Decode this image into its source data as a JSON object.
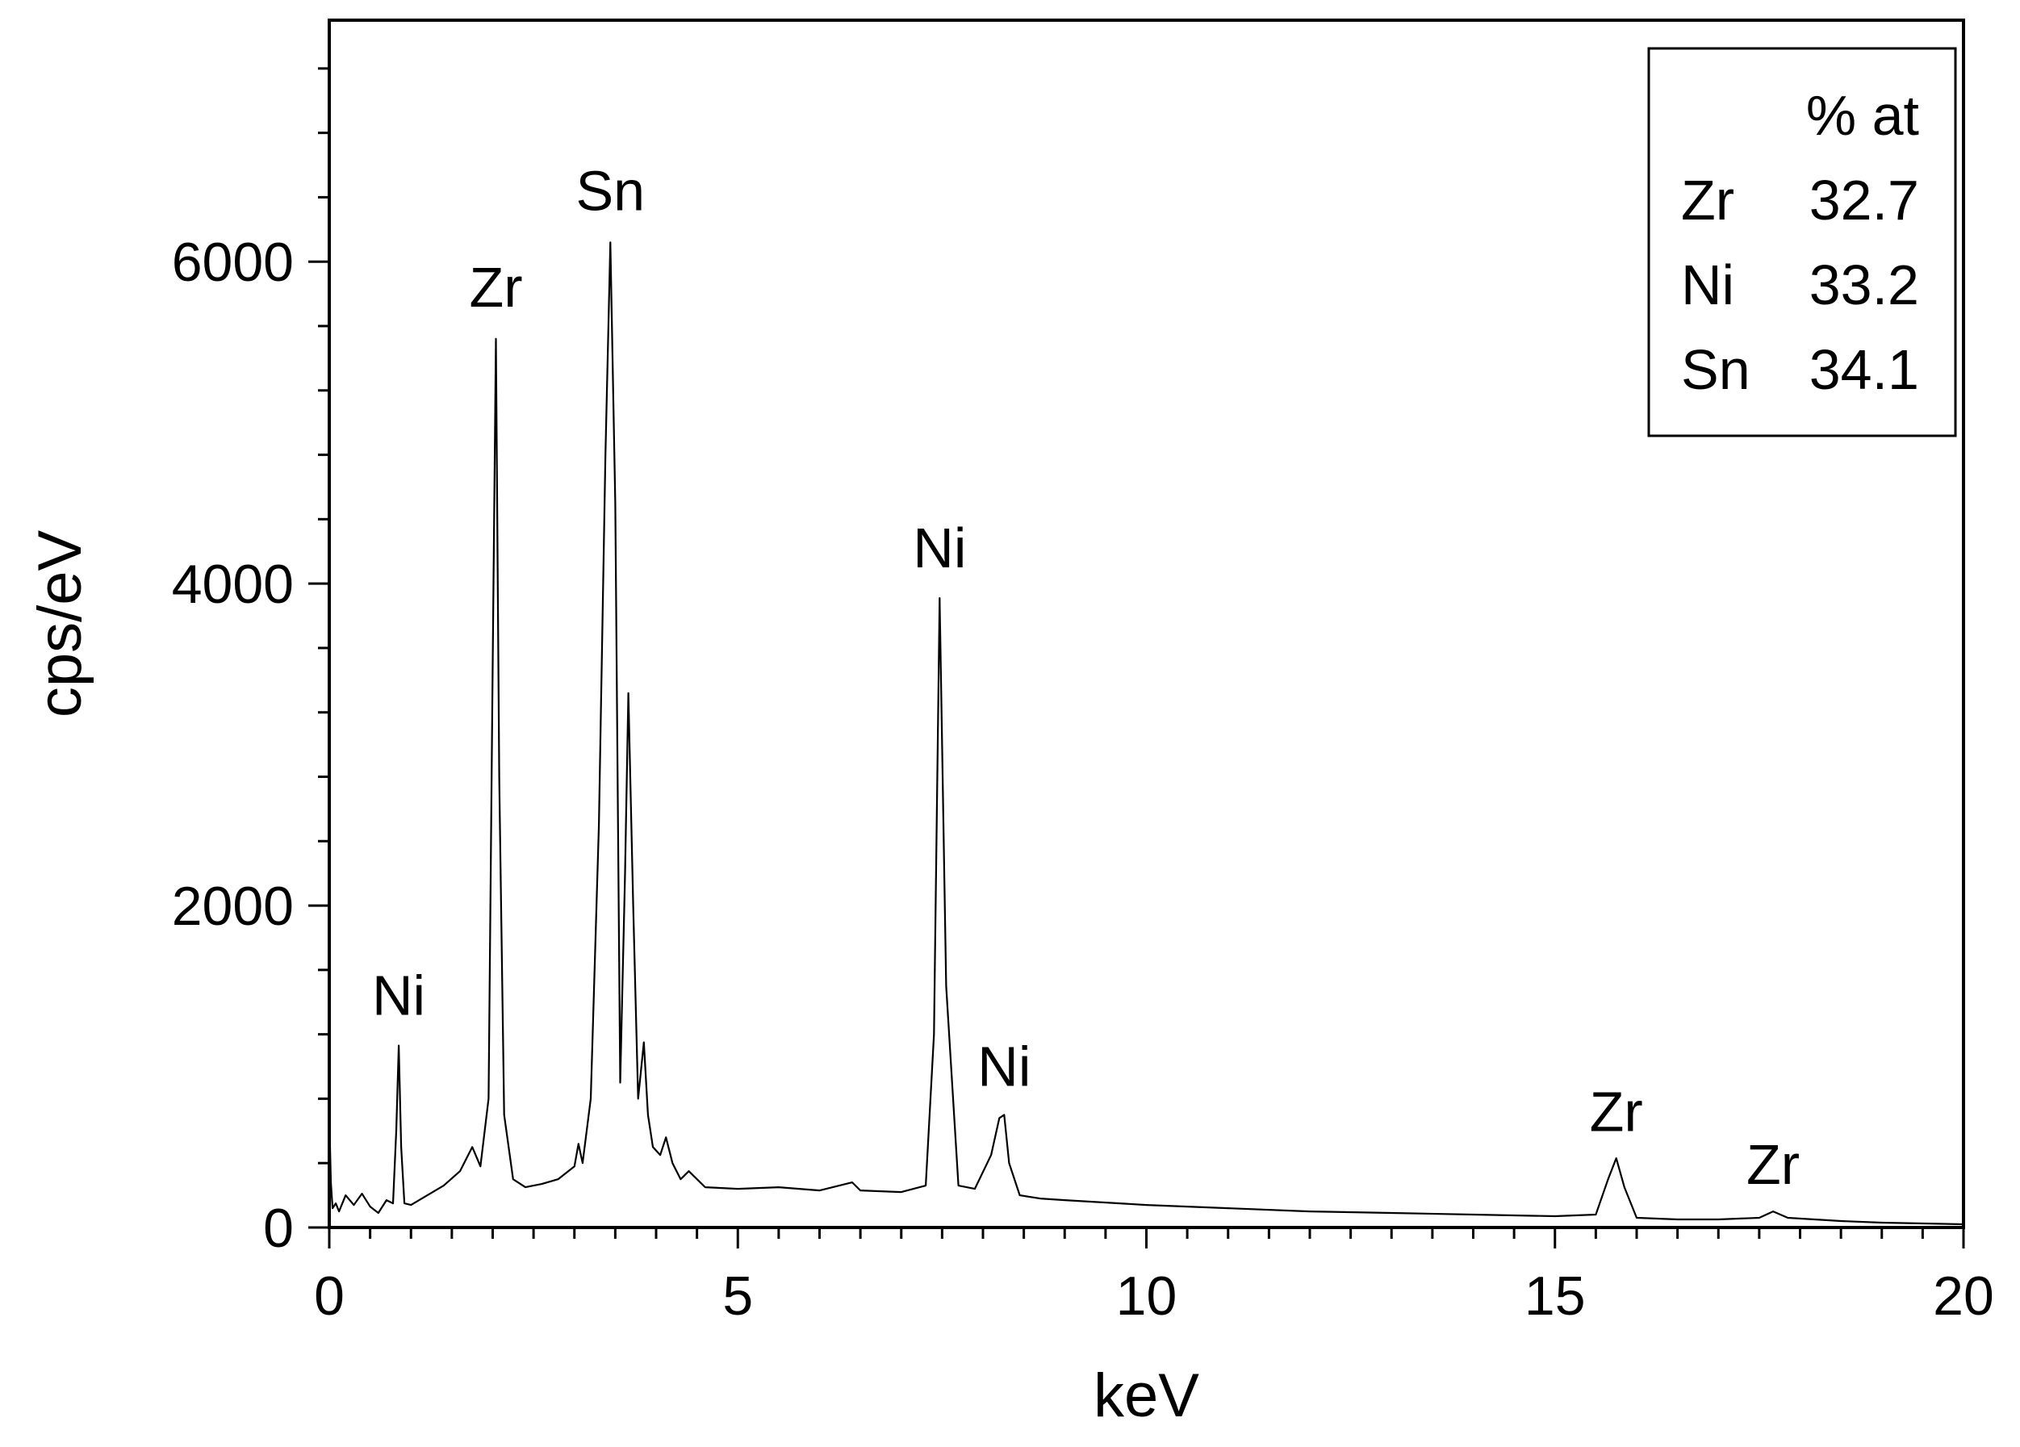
{
  "chart_data": {
    "type": "line",
    "title": "",
    "xlabel": "keV",
    "ylabel": "cps/eV",
    "xlim": [
      0,
      20
    ],
    "ylim": [
      0,
      7500
    ],
    "x_ticks": [
      0,
      5,
      10,
      15,
      20
    ],
    "x_tick_labels": [
      "0",
      "5",
      "10",
      "15",
      "20"
    ],
    "y_ticks": [
      0,
      2000,
      4000,
      6000
    ],
    "y_tick_labels": [
      "0",
      "2000",
      "4000",
      "6000"
    ],
    "grid": false,
    "line_color": "#000000",
    "peaks": [
      {
        "label": "Ni",
        "x": 0.85,
        "y": 1130,
        "label_y": 1320
      },
      {
        "label": "Zr",
        "x": 2.04,
        "y": 5520,
        "label_y": 5720
      },
      {
        "label": "Sn",
        "x": 3.44,
        "y": 6120,
        "label_y": 6320
      },
      {
        "label": "Ni",
        "x": 7.47,
        "y": 3910,
        "label_y": 4100
      },
      {
        "label": "Ni",
        "x": 8.26,
        "y": 700,
        "label_y": 880
      },
      {
        "label": "Zr",
        "x": 15.75,
        "y": 430,
        "label_y": 600
      },
      {
        "label": "Zr",
        "x": 17.67,
        "y": 100,
        "label_y": 270
      }
    ],
    "series": [
      {
        "x": [
          0.0,
          0.02,
          0.04,
          0.08,
          0.12,
          0.2,
          0.3,
          0.4,
          0.5,
          0.6,
          0.7,
          0.78,
          0.82,
          0.85,
          0.88,
          0.92,
          1.0,
          1.2,
          1.4,
          1.6,
          1.75,
          1.85,
          1.95,
          2.0,
          2.04,
          2.08,
          2.14,
          2.25,
          2.4,
          2.6,
          2.8,
          3.0,
          3.05,
          3.1,
          3.2,
          3.3,
          3.38,
          3.44,
          3.5,
          3.56,
          3.62,
          3.66,
          3.72,
          3.78,
          3.85,
          3.9,
          3.96,
          4.05,
          4.12,
          4.2,
          4.3,
          4.4,
          4.6,
          5.0,
          5.5,
          6.0,
          6.4,
          6.5,
          7.0,
          7.3,
          7.4,
          7.47,
          7.55,
          7.7,
          7.9,
          8.1,
          8.2,
          8.26,
          8.32,
          8.45,
          8.7,
          9.0,
          10.0,
          11.0,
          12.0,
          13.0,
          14.0,
          15.0,
          15.5,
          15.65,
          15.75,
          15.85,
          16.0,
          16.5,
          17.0,
          17.5,
          17.67,
          17.85,
          18.5,
          19.0,
          19.5,
          20.0
        ],
        "y": [
          700,
          280,
          120,
          150,
          100,
          200,
          140,
          210,
          130,
          90,
          170,
          150,
          600,
          1130,
          500,
          150,
          140,
          200,
          260,
          350,
          500,
          380,
          800,
          3500,
          5520,
          2800,
          700,
          300,
          250,
          270,
          300,
          380,
          520,
          400,
          800,
          2500,
          4800,
          6120,
          4500,
          900,
          2200,
          3320,
          2000,
          800,
          1150,
          700,
          500,
          450,
          560,
          400,
          300,
          350,
          250,
          240,
          250,
          230,
          280,
          230,
          220,
          260,
          1200,
          3910,
          1500,
          260,
          240,
          450,
          680,
          700,
          400,
          200,
          180,
          170,
          140,
          120,
          100,
          90,
          80,
          70,
          80,
          300,
          430,
          250,
          60,
          50,
          50,
          60,
          100,
          60,
          40,
          30,
          25,
          20
        ]
      }
    ]
  },
  "legend": {
    "header": "% at",
    "rows": [
      {
        "element": "Zr",
        "value": "32.7"
      },
      {
        "element": "Ni",
        "value": "33.2"
      },
      {
        "element": "Sn",
        "value": "34.1"
      }
    ]
  }
}
